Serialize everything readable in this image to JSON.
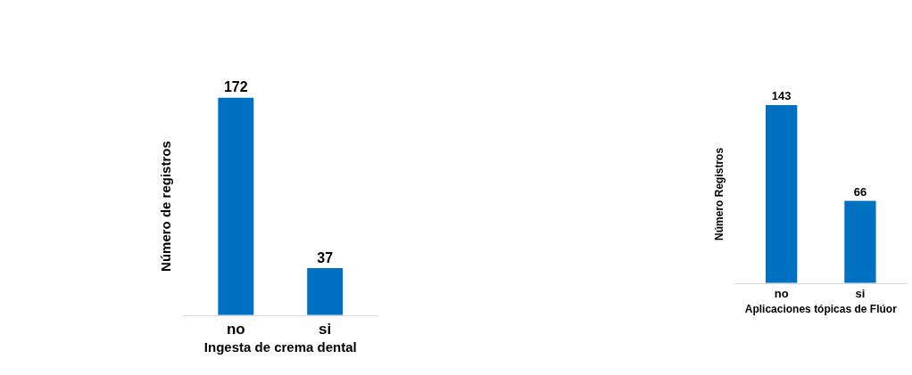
{
  "chart_data": [
    {
      "type": "bar",
      "categories": [
        "no",
        "si"
      ],
      "values": [
        172,
        37
      ],
      "color": "#0070c0",
      "xlabel": "Ingesta de crema dental",
      "ylabel": "Número de registros",
      "data_labels": true,
      "tick_labels": "x"
    },
    {
      "type": "bar",
      "categories": [
        "no",
        "si"
      ],
      "values": [
        143,
        66
      ],
      "color": "#0070c0",
      "xlabel": "Aplicaciones tópicas de Flúor",
      "ylabel": "Número Registros",
      "data_labels": true,
      "tick_labels": "x"
    }
  ]
}
